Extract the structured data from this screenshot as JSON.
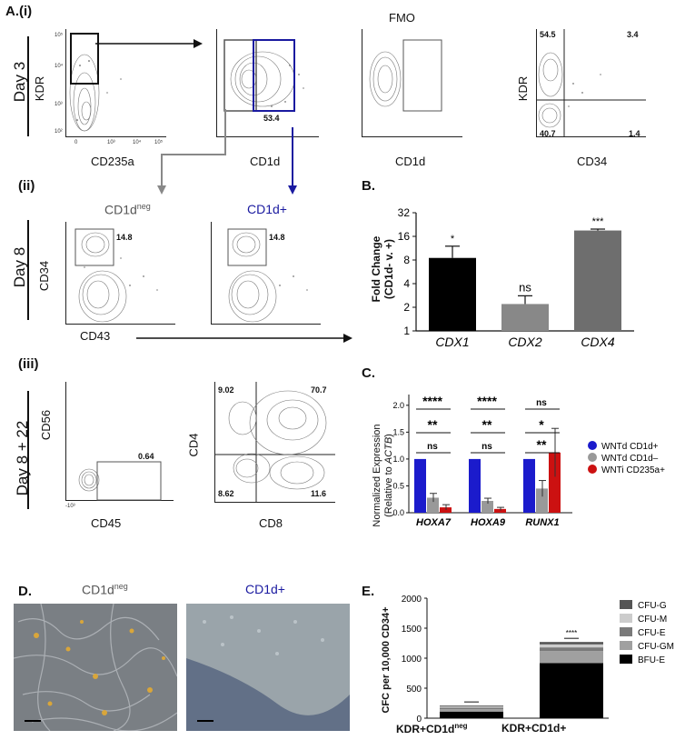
{
  "panels": {
    "A": "A.(i)",
    "ii": "(ii)",
    "iii": "(iii)",
    "B": "B.",
    "C": "C.",
    "D": "D.",
    "E": "E."
  },
  "days": {
    "day3": "Day 3",
    "day8": "Day 8",
    "day822": "Day 8 + 22"
  },
  "flow": {
    "p1": {
      "x": "CD235a",
      "y": "KDR"
    },
    "p2": {
      "x": "CD1d",
      "y": "",
      "value": "53.4"
    },
    "p3": {
      "x": "CD1d",
      "title": "FMO"
    },
    "p4": {
      "x": "CD34",
      "y": "KDR",
      "q_tl": "54.5",
      "q_tr": "3.4",
      "q_bl": "40.7",
      "q_br": "1.4"
    },
    "p5": {
      "x": "CD43",
      "y": "CD34",
      "title_main": "CD1d",
      "title_sup": "neg",
      "value": "14.8"
    },
    "p6": {
      "title": "CD1d+",
      "value": "14.8"
    },
    "p7": {
      "x": "CD45",
      "y": "CD56",
      "value": "0.64"
    },
    "p8": {
      "x": "CD8",
      "y": "CD4",
      "q_tl": "9.02",
      "q_tr": "70.7",
      "q_bl": "8.62",
      "q_br": "11.6"
    }
  },
  "ticks": {
    "t5": "10⁵",
    "t4": "10⁴",
    "t3": "10³",
    "t2": "10²",
    "t0": "0",
    "tm3": "-10³"
  },
  "chart_data": [
    {
      "type": "bar",
      "panel": "B",
      "categories": [
        "CDX1",
        "CDX2",
        "CDX4"
      ],
      "values": [
        8.5,
        2.2,
        19
      ],
      "errors": [
        3.5,
        0.6,
        0.8
      ],
      "significance": [
        "*",
        "ns",
        "***"
      ],
      "colors": [
        "#000000",
        "#888888",
        "#6e6e6e"
      ],
      "ylabel_line1": "Fold Change",
      "ylabel_line2": "(CD1d- v. +)",
      "yscale": "log2",
      "yticks": [
        "1",
        "2",
        "4",
        "8",
        "16",
        "32"
      ],
      "ylim": [
        1,
        32
      ]
    },
    {
      "type": "bar",
      "panel": "C",
      "categories": [
        "HOXA7",
        "HOXA9",
        "RUNX1"
      ],
      "series": [
        {
          "name": "WNTd CD1d+",
          "color": "#1b1bcc",
          "values": [
            1.0,
            1.0,
            1.0
          ],
          "errors": [
            0,
            0,
            0
          ]
        },
        {
          "name": "WNTd CD1d–",
          "color": "#999999",
          "values": [
            0.28,
            0.22,
            0.45
          ],
          "errors": [
            0.08,
            0.05,
            0.15
          ]
        },
        {
          "name": "WNTi CD235a+",
          "color": "#cc1111",
          "values": [
            0.1,
            0.07,
            1.12
          ],
          "errors": [
            0.05,
            0.03,
            0.45
          ]
        }
      ],
      "significance": [
        [
          "****",
          "**",
          "ns"
        ],
        [
          "****",
          "**",
          "ns"
        ],
        [
          "ns",
          "*",
          "**"
        ]
      ],
      "ylabel_line1": "Normalized Expression",
      "ylabel_line2_prefix": "(Relative to ",
      "ylabel_line2_gene": "ACTB",
      "ylabel_line2_suffix": ")",
      "yticks": [
        "0.0",
        "0.5",
        "1.0",
        "1.5",
        "2.0"
      ],
      "ylim": [
        0,
        2.2
      ]
    },
    {
      "type": "bar",
      "panel": "E",
      "stacked": true,
      "categories_main": [
        "KDR+CD1d",
        "KDR+CD1d+"
      ],
      "category1_sup": "neg",
      "series": [
        {
          "name": "CFU-G",
          "color": "#555555",
          "values": [
            15,
            40
          ]
        },
        {
          "name": "CFU-M",
          "color": "#cccccc",
          "values": [
            20,
            50
          ]
        },
        {
          "name": "CFU-E",
          "color": "#7a7a7a",
          "values": [
            25,
            60
          ]
        },
        {
          "name": "CFU-GM",
          "color": "#a0a0a0",
          "values": [
            40,
            200
          ]
        },
        {
          "name": "BFU-E",
          "color": "#000000",
          "values": [
            110,
            920
          ]
        }
      ],
      "significance": "****",
      "ylabel": "CFC per 10,000 CD34+",
      "yticks": [
        "0",
        "500",
        "1000",
        "1500",
        "2000"
      ],
      "ylim": [
        0,
        2000
      ]
    }
  ],
  "photos": {
    "left_main": "CD1d",
    "left_sup": "neg",
    "right": "CD1d+"
  }
}
